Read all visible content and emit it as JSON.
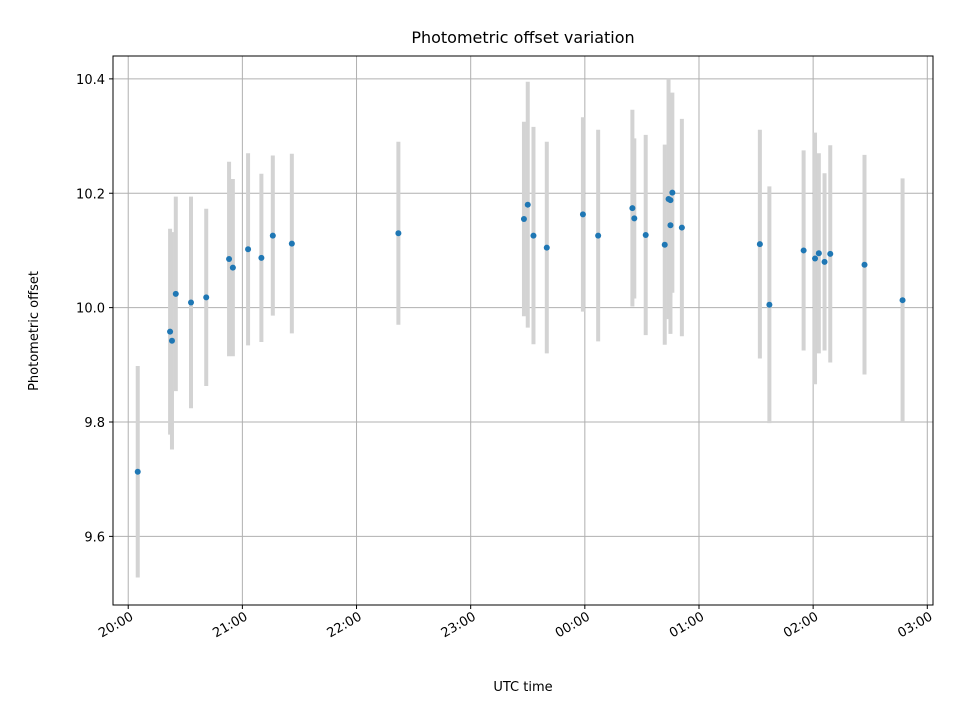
{
  "chart_data": {
    "type": "scatter",
    "title": "Photometric offset variation",
    "xlabel": "UTC time",
    "ylabel": "Photometric offset",
    "x_type": "time",
    "x_ticks": [
      "20:00",
      "21:00",
      "22:00",
      "23:00",
      "00:00",
      "01:00",
      "02:00",
      "03:00"
    ],
    "y_ticks": [
      "9.6",
      "9.8",
      "10.0",
      "10.2",
      "10.4"
    ],
    "xlim": [
      "19:52",
      "03:03"
    ],
    "ylim": [
      9.48,
      10.44
    ],
    "grid": true,
    "colors": {
      "point": "#1f77b4",
      "errorbar": "#d3d3d3",
      "grid": "#b0b0b0"
    },
    "points": [
      {
        "t": "20:05",
        "y": 9.713,
        "err": 0.185
      },
      {
        "t": "20:22",
        "y": 9.958,
        "err": 0.18
      },
      {
        "t": "20:23",
        "y": 9.942,
        "err": 0.19
      },
      {
        "t": "20:25",
        "y": 10.024,
        "err": 0.17
      },
      {
        "t": "20:33",
        "y": 10.009,
        "err": 0.185
      },
      {
        "t": "20:41",
        "y": 10.018,
        "err": 0.155
      },
      {
        "t": "20:53",
        "y": 10.085,
        "err": 0.17
      },
      {
        "t": "20:55",
        "y": 10.07,
        "err": 0.155
      },
      {
        "t": "21:03",
        "y": 10.102,
        "err": 0.168
      },
      {
        "t": "21:10",
        "y": 10.087,
        "err": 0.147
      },
      {
        "t": "21:16",
        "y": 10.126,
        "err": 0.14
      },
      {
        "t": "21:26",
        "y": 10.112,
        "err": 0.157
      },
      {
        "t": "22:22",
        "y": 10.13,
        "err": 0.16
      },
      {
        "t": "23:28",
        "y": 10.155,
        "err": 0.17
      },
      {
        "t": "23:30",
        "y": 10.18,
        "err": 0.215
      },
      {
        "t": "23:33",
        "y": 10.126,
        "err": 0.19
      },
      {
        "t": "23:40",
        "y": 10.105,
        "err": 0.185
      },
      {
        "t": "23:59",
        "y": 10.163,
        "err": 0.17
      },
      {
        "t": "00:07",
        "y": 10.126,
        "err": 0.185
      },
      {
        "t": "00:25",
        "y": 10.174,
        "err": 0.172
      },
      {
        "t": "00:26",
        "y": 10.156,
        "err": 0.14
      },
      {
        "t": "00:32",
        "y": 10.127,
        "err": 0.175
      },
      {
        "t": "00:42",
        "y": 10.11,
        "err": 0.175
      },
      {
        "t": "00:44",
        "y": 10.19,
        "err": 0.21
      },
      {
        "t": "00:45",
        "y": 10.188,
        "err": 0.17
      },
      {
        "t": "00:45",
        "y": 10.144,
        "err": 0.19
      },
      {
        "t": "00:46",
        "y": 10.201,
        "err": 0.175
      },
      {
        "t": "00:51",
        "y": 10.14,
        "err": 0.19
      },
      {
        "t": "01:32",
        "y": 10.111,
        "err": 0.2
      },
      {
        "t": "01:37",
        "y": 10.005,
        "err": 0.207
      },
      {
        "t": "01:55",
        "y": 10.1,
        "err": 0.175
      },
      {
        "t": "02:01",
        "y": 10.086,
        "err": 0.22
      },
      {
        "t": "02:03",
        "y": 10.095,
        "err": 0.175
      },
      {
        "t": "02:06",
        "y": 10.08,
        "err": 0.155
      },
      {
        "t": "02:09",
        "y": 10.094,
        "err": 0.19
      },
      {
        "t": "02:27",
        "y": 10.075,
        "err": 0.192
      },
      {
        "t": "02:47",
        "y": 10.013,
        "err": 0.213
      }
    ]
  }
}
